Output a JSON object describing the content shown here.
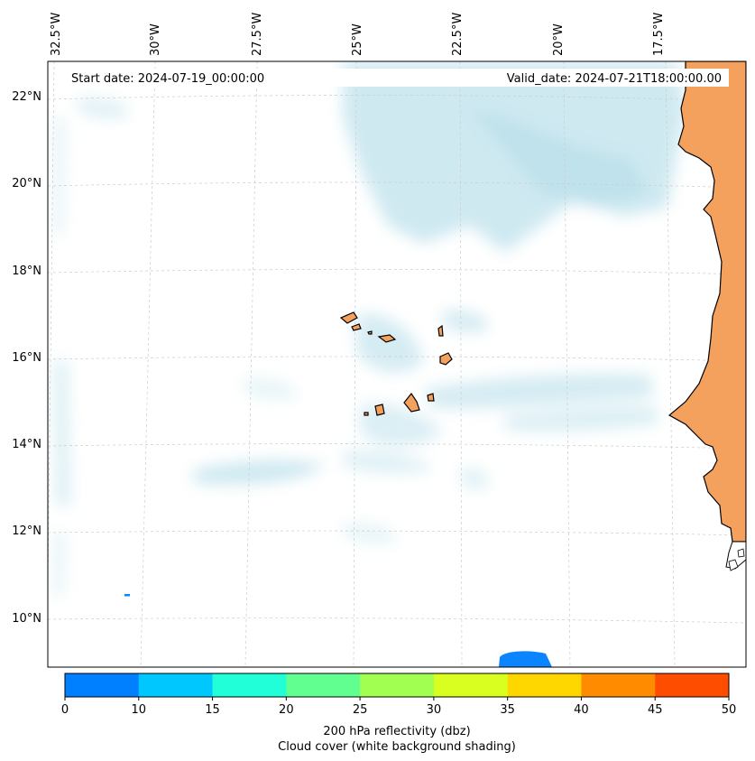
{
  "header": {
    "start_date": "Start date: 2024-07-19_00:00:00",
    "valid_date": "Valid_date: 2024-07-21T18:00:00.00"
  },
  "axes": {
    "lon_labels": [
      "32.5°W",
      "30°W",
      "27.5°W",
      "25°W",
      "22.5°W",
      "20°W",
      "17.5°W"
    ],
    "lat_labels": [
      "22°N",
      "20°N",
      "18°N",
      "16°N",
      "14°N",
      "12°N",
      "10°N"
    ]
  },
  "colorbar": {
    "bins": [
      {
        "color": "#0080ff"
      },
      {
        "color": "#00c8ff"
      },
      {
        "color": "#20ffd8"
      },
      {
        "color": "#60ff90"
      },
      {
        "color": "#a0ff50"
      },
      {
        "color": "#d8ff20"
      },
      {
        "color": "#ffd700"
      },
      {
        "color": "#ff8c00"
      },
      {
        "color": "#ff4d00"
      }
    ],
    "ticks": [
      "0",
      "10",
      "15",
      "20",
      "25",
      "30",
      "35",
      "40",
      "45",
      "50"
    ],
    "label": "200 hPa reflectivity (dbz)",
    "sublabel": "Cloud cover (white background shading)"
  },
  "colors": {
    "land": "#f4a15d",
    "cloud": "#a8d8e6",
    "reflectivity_low": "#0a84ff",
    "coast": "#000000",
    "grid": "#cccccc"
  }
}
